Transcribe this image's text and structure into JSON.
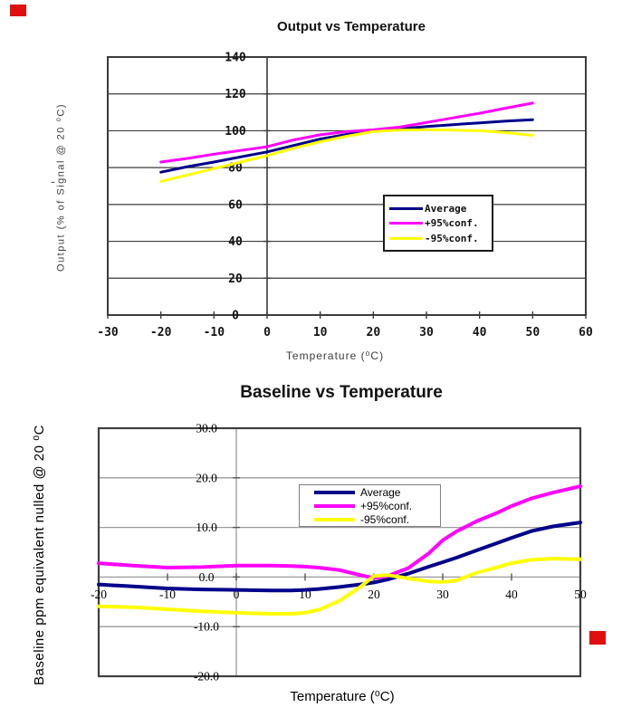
{
  "artifacts": {
    "red_marker_color": "#e01010",
    "stray_dash": "-"
  },
  "chart_data": [
    {
      "type": "line",
      "title": "Output vs Temperature",
      "xlabel": "Temperature (⁰C)",
      "ylabel": "Output (% of Signal @ 20 ⁰C)",
      "xlim": [
        -30,
        60
      ],
      "ylim": [
        0,
        140
      ],
      "x_ticks": [
        -30,
        -20,
        -10,
        0,
        10,
        20,
        30,
        40,
        50,
        60
      ],
      "y_ticks": [
        0,
        20,
        40,
        60,
        80,
        100,
        120,
        140
      ],
      "y_tick_labels": [
        "0",
        "20",
        "40",
        "60",
        "80",
        "100",
        "120",
        "140"
      ],
      "grid": "horizontal",
      "legend_position": "inside lower-right",
      "x": [
        -20,
        -15,
        -10,
        -5,
        0,
        5,
        10,
        15,
        20,
        25,
        30,
        35,
        40,
        45,
        50
      ],
      "series": [
        {
          "name": "Average",
          "color": "#00008b",
          "values": [
            77.5,
            80.5,
            83,
            85.8,
            88.5,
            92,
            95.5,
            98,
            100,
            101,
            102.3,
            103.3,
            104.3,
            105.2,
            106
          ]
        },
        {
          "name": "+95%conf.",
          "color": "#ff00ff",
          "values": [
            83,
            85,
            87.3,
            89.3,
            91.3,
            95,
            97.8,
            99.5,
            100.5,
            102,
            104.5,
            107,
            109.5,
            112.3,
            115
          ]
        },
        {
          "name": "-95%conf.",
          "color": "#ffff00",
          "values": [
            72.5,
            76,
            79.5,
            83,
            86.5,
            90.5,
            94,
            97,
            99.5,
            100.3,
            100.5,
            100.3,
            100,
            99,
            97.5
          ]
        }
      ]
    },
    {
      "type": "line",
      "title": "Baseline vs Temperature",
      "xlabel": "Temperature (⁰C)",
      "ylabel": "Baseline ppm equivalent nulled @ 20 ⁰C",
      "xlim": [
        -20,
        50
      ],
      "ylim": [
        -20,
        30
      ],
      "x_ticks": [
        -20,
        -10,
        0,
        10,
        20,
        30,
        40,
        50
      ],
      "y_ticks": [
        30,
        20,
        10,
        0,
        -10,
        -20
      ],
      "y_tick_labels": [
        "30.0",
        "20.0",
        "10.0",
        "0.0",
        "-10.0",
        "-20.0"
      ],
      "grid": "horizontal",
      "legend_position": "inside upper-middle",
      "x": [
        -20,
        -15,
        -10,
        -5,
        0,
        5,
        8,
        10,
        12,
        15,
        18,
        20,
        22,
        25,
        28,
        30,
        32,
        35,
        38,
        40,
        43,
        46,
        50
      ],
      "series": [
        {
          "name": "Average",
          "color": "#00008b",
          "values": [
            -1.5,
            -1.9,
            -2.3,
            -2.5,
            -2.6,
            -2.7,
            -2.7,
            -2.6,
            -2.4,
            -2.0,
            -1.5,
            -1.1,
            -0.5,
            0.7,
            2.1,
            3.0,
            3.9,
            5.4,
            6.9,
            7.9,
            9.3,
            10.2,
            11.0
          ]
        },
        {
          "name": "+95%conf.",
          "color": "#ff00ff",
          "values": [
            2.8,
            2.3,
            1.9,
            2.0,
            2.3,
            2.3,
            2.2,
            2.1,
            1.9,
            1.4,
            0.4,
            -0.2,
            0.2,
            1.8,
            4.8,
            7.4,
            9.2,
            11.3,
            13.0,
            14.3,
            15.9,
            17.0,
            18.3
          ]
        },
        {
          "name": "-95%conf.",
          "color": "#ffff00",
          "values": [
            -5.9,
            -6.1,
            -6.5,
            -6.9,
            -7.2,
            -7.4,
            -7.4,
            -7.2,
            -6.6,
            -4.8,
            -2.0,
            0.2,
            0.4,
            -0.3,
            -0.9,
            -1.0,
            -0.7,
            0.9,
            2.0,
            2.8,
            3.5,
            3.7,
            3.6
          ]
        }
      ]
    }
  ]
}
